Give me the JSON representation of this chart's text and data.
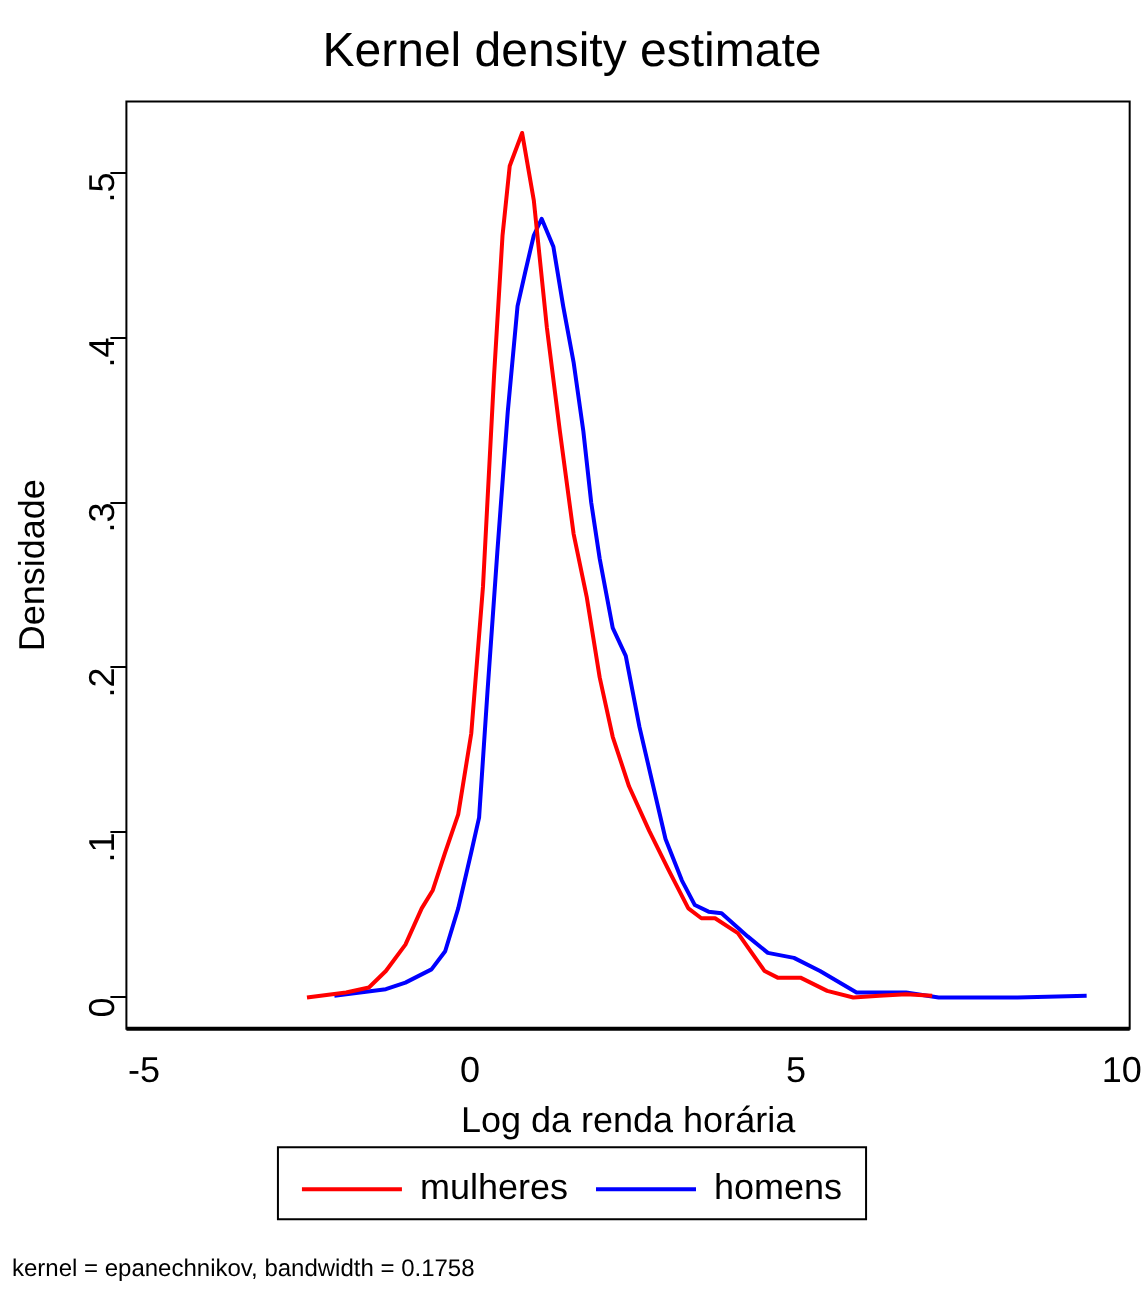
{
  "chart_data": {
    "type": "line",
    "title": "Kernel density estimate",
    "xlabel": "Log da renda horária",
    "ylabel": "Densidade",
    "annotations": [
      "kernel = epanechnikov, bandwidth = 0.1758"
    ],
    "xlim": [
      -5.27,
      10.12
    ],
    "xticks": [
      -5,
      0,
      5,
      10
    ],
    "ylim": [
      -0.019,
      0.543
    ],
    "yticks": [
      0,
      {
        "value": 0.1,
        "label": ".1"
      },
      {
        "value": 0.2,
        "label": ".2"
      },
      {
        "value": 0.3,
        "label": ".3"
      },
      {
        "value": 0.4,
        "label": ".4"
      },
      {
        "value": 0.5,
        "label": ".5"
      }
    ],
    "grid": false,
    "legend": "bottom",
    "marker": "none",
    "line_style": "solid",
    "series": [
      {
        "name": "mulheres",
        "color": "#ff0000",
        "x": [
          -2.5,
          -1.9,
          -1.55,
          -1.29,
          -0.99,
          -0.74,
          -0.57,
          -0.38,
          -0.18,
          0.02,
          0.2,
          0.37,
          0.5,
          0.61,
          0.8,
          0.98,
          1.18,
          1.38,
          1.59,
          1.79,
          1.99,
          2.19,
          2.44,
          2.75,
          3.05,
          3.35,
          3.55,
          3.76,
          4.11,
          4.52,
          4.72,
          5.07,
          5.48,
          5.88,
          6.28,
          6.69,
          7.09
        ],
        "values": [
          0,
          0.003,
          0.006,
          0.016,
          0.032,
          0.054,
          0.065,
          0.088,
          0.111,
          0.16,
          0.249,
          0.377,
          0.462,
          0.504,
          0.524,
          0.483,
          0.406,
          0.343,
          0.281,
          0.243,
          0.194,
          0.158,
          0.128,
          0.101,
          0.077,
          0.054,
          0.048,
          0.048,
          0.039,
          0.016,
          0.012,
          0.012,
          0.004,
          0,
          0.001,
          0.002,
          0.001
        ]
      },
      {
        "name": "homens",
        "color": "#0000ff",
        "x": [
          -2.08,
          -1.29,
          -0.99,
          -0.59,
          -0.38,
          -0.18,
          0.02,
          0.14,
          0.27,
          0.42,
          0.58,
          0.73,
          0.85,
          0.98,
          1.1,
          1.28,
          1.43,
          1.59,
          1.74,
          1.86,
          1.99,
          2.19,
          2.39,
          2.6,
          2.8,
          3.0,
          3.25,
          3.45,
          3.66,
          3.86,
          4.26,
          4.57,
          4.97,
          5.37,
          5.93,
          6.69,
          7.19,
          8.4,
          9.46
        ],
        "values": [
          0.001,
          0.005,
          0.009,
          0.017,
          0.028,
          0.054,
          0.088,
          0.109,
          0.186,
          0.27,
          0.355,
          0.419,
          0.44,
          0.462,
          0.472,
          0.455,
          0.419,
          0.385,
          0.343,
          0.3,
          0.266,
          0.224,
          0.207,
          0.164,
          0.13,
          0.096,
          0.071,
          0.056,
          0.052,
          0.051,
          0.037,
          0.027,
          0.024,
          0.016,
          0.003,
          0.003,
          0,
          0,
          0.001
        ]
      }
    ]
  }
}
